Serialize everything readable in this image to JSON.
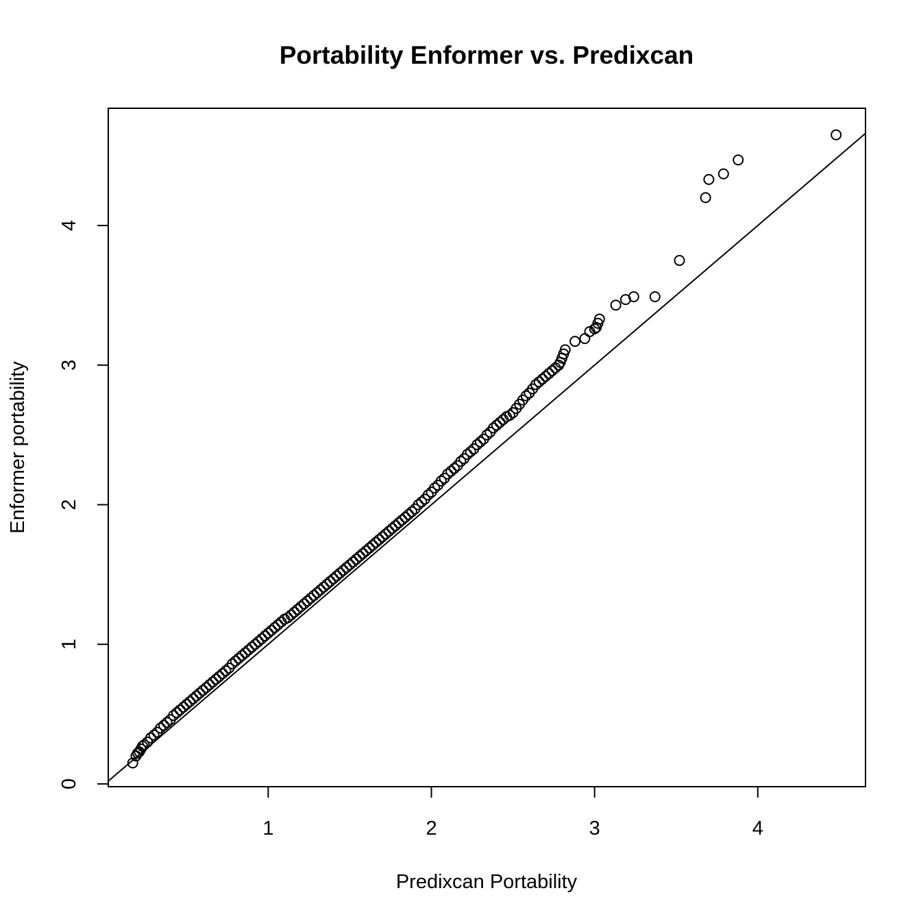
{
  "chart_data": {
    "type": "scatter",
    "title": "Portability Enformer vs. Predixcan",
    "xlabel": "Predixcan Portability",
    "ylabel": "Enformer portability",
    "xlim": [
      0.02,
      4.66
    ],
    "ylim": [
      -0.02,
      4.84
    ],
    "x_ticks": [
      1,
      2,
      3,
      4
    ],
    "x_tick_labels": [
      "1",
      "2",
      "3",
      "4"
    ],
    "y_ticks": [
      0,
      1,
      2,
      3,
      4
    ],
    "y_tick_labels": [
      "0",
      "1",
      "2",
      "3",
      "4"
    ],
    "reference_line": {
      "intercept": 0,
      "slope": 1
    },
    "marker": "open-circle",
    "color": "#000000",
    "series": [
      {
        "x": [
          0.17,
          0.19,
          0.2,
          0.21,
          0.22,
          0.23,
          0.24,
          0.26,
          0.28,
          0.3,
          0.32,
          0.34,
          0.36,
          0.38,
          0.4,
          0.42,
          0.44,
          0.46,
          0.48,
          0.5,
          0.52,
          0.54,
          0.56,
          0.58,
          0.6,
          0.62,
          0.64,
          0.66,
          0.68,
          0.7,
          0.72,
          0.74,
          0.76,
          0.78,
          0.8,
          0.82,
          0.84,
          0.86,
          0.88,
          0.9,
          0.92,
          0.94,
          0.96,
          0.98,
          1.0,
          1.02,
          1.04,
          1.06,
          1.08,
          1.1,
          1.12,
          1.14,
          1.16,
          1.18,
          1.2,
          1.22,
          1.24,
          1.26,
          1.28,
          1.3,
          1.32,
          1.34,
          1.36,
          1.38,
          1.4,
          1.42,
          1.44,
          1.46,
          1.48,
          1.5,
          1.52,
          1.54,
          1.56,
          1.58,
          1.6,
          1.62,
          1.64,
          1.66,
          1.68,
          1.7,
          1.72,
          1.74,
          1.76,
          1.78,
          1.8,
          1.82,
          1.84,
          1.86,
          1.88,
          1.9,
          1.92,
          1.94,
          1.96,
          1.98,
          2.0,
          2.02,
          2.04,
          2.06,
          2.08,
          2.1,
          2.12,
          2.14,
          2.16,
          2.18,
          2.2,
          2.22,
          2.24,
          2.26,
          2.28,
          2.3,
          2.32,
          2.34,
          2.36,
          2.38,
          2.4,
          2.42,
          2.44,
          2.46,
          2.48,
          2.5,
          2.52,
          2.54,
          2.56,
          2.58,
          2.6,
          2.62,
          2.64,
          2.66,
          2.68,
          2.7,
          2.72,
          2.74,
          2.76,
          2.78,
          2.79,
          2.8,
          2.81,
          2.82,
          2.88,
          2.94,
          2.97,
          3.0,
          3.01,
          3.02,
          3.03,
          3.13,
          3.19,
          3.24,
          3.37,
          3.52,
          3.68,
          3.7,
          3.79,
          3.88,
          4.48
        ],
        "y": [
          0.15,
          0.2,
          0.22,
          0.23,
          0.25,
          0.27,
          0.28,
          0.3,
          0.33,
          0.35,
          0.37,
          0.4,
          0.42,
          0.44,
          0.46,
          0.49,
          0.51,
          0.53,
          0.55,
          0.57,
          0.59,
          0.61,
          0.63,
          0.65,
          0.67,
          0.69,
          0.71,
          0.73,
          0.75,
          0.77,
          0.79,
          0.81,
          0.83,
          0.86,
          0.88,
          0.9,
          0.92,
          0.94,
          0.96,
          0.98,
          1.0,
          1.02,
          1.04,
          1.06,
          1.08,
          1.1,
          1.12,
          1.14,
          1.16,
          1.18,
          1.19,
          1.21,
          1.23,
          1.25,
          1.27,
          1.29,
          1.31,
          1.33,
          1.35,
          1.37,
          1.39,
          1.41,
          1.43,
          1.45,
          1.47,
          1.49,
          1.51,
          1.53,
          1.55,
          1.57,
          1.59,
          1.61,
          1.63,
          1.65,
          1.67,
          1.69,
          1.71,
          1.73,
          1.75,
          1.77,
          1.79,
          1.81,
          1.83,
          1.85,
          1.87,
          1.89,
          1.91,
          1.93,
          1.95,
          1.97,
          2.0,
          2.02,
          2.04,
          2.07,
          2.09,
          2.12,
          2.14,
          2.17,
          2.19,
          2.22,
          2.24,
          2.26,
          2.28,
          2.31,
          2.33,
          2.36,
          2.38,
          2.4,
          2.43,
          2.45,
          2.47,
          2.5,
          2.52,
          2.55,
          2.57,
          2.59,
          2.61,
          2.63,
          2.64,
          2.66,
          2.69,
          2.72,
          2.75,
          2.78,
          2.8,
          2.83,
          2.86,
          2.88,
          2.9,
          2.92,
          2.94,
          2.96,
          2.98,
          3.0,
          3.02,
          3.05,
          3.08,
          3.11,
          3.17,
          3.19,
          3.24,
          3.26,
          3.27,
          3.3,
          3.33,
          3.43,
          3.47,
          3.49,
          3.49,
          3.75,
          4.2,
          4.33,
          4.37,
          4.47,
          4.65
        ]
      }
    ]
  }
}
